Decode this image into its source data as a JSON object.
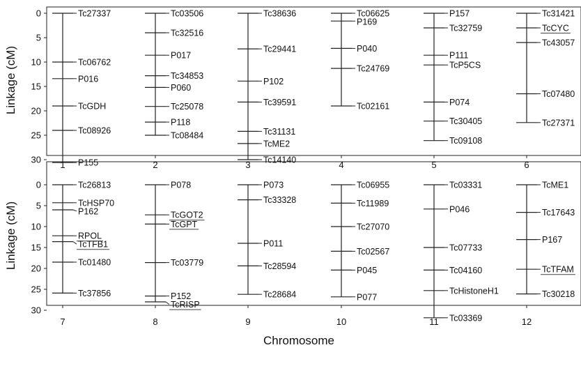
{
  "chart_data": {
    "type": "linkage-map",
    "xlabel": "Chromosome",
    "ylabel": "Linkage (cM)",
    "yticks": [
      0,
      5,
      10,
      15,
      20,
      25,
      30
    ],
    "panels": [
      {
        "ylim": [
          0,
          32
        ],
        "chromosomes": [
          {
            "name": "1",
            "markers": [
              {
                "name": "Tc27337",
                "cM": 0,
                "underlined": false
              },
              {
                "name": "Tc06762",
                "cM": 10,
                "underlined": false
              },
              {
                "name": "P016",
                "cM": 13.4,
                "underlined": false
              },
              {
                "name": "TcGDH",
                "cM": 19,
                "underlined": false
              },
              {
                "name": "Tc08926",
                "cM": 24,
                "underlined": false
              },
              {
                "name": "P155",
                "cM": 30.6,
                "underlined": false
              }
            ]
          },
          {
            "name": "2",
            "markers": [
              {
                "name": "Tc03506",
                "cM": 0,
                "underlined": false
              },
              {
                "name": "Tc32516",
                "cM": 4,
                "underlined": false
              },
              {
                "name": "P017",
                "cM": 8.6,
                "underlined": false
              },
              {
                "name": "Tc34853",
                "cM": 12.8,
                "underlined": false
              },
              {
                "name": "P060",
                "cM": 15.2,
                "underlined": false
              },
              {
                "name": "Tc25078",
                "cM": 19.1,
                "underlined": false
              },
              {
                "name": "P118",
                "cM": 22.3,
                "underlined": false
              },
              {
                "name": "Tc08484",
                "cM": 25,
                "underlined": false
              }
            ]
          },
          {
            "name": "3",
            "markers": [
              {
                "name": "Tc38636",
                "cM": 0,
                "underlined": false
              },
              {
                "name": "Tc29441",
                "cM": 7.3,
                "underlined": false
              },
              {
                "name": "P102",
                "cM": 13.9,
                "underlined": false
              },
              {
                "name": "Tc39591",
                "cM": 18.2,
                "underlined": false
              },
              {
                "name": "Tc31131",
                "cM": 24.2,
                "underlined": false
              },
              {
                "name": "TcME2",
                "cM": 26.7,
                "underlined": false
              },
              {
                "name": "Tc14140",
                "cM": 30,
                "underlined": false
              }
            ]
          },
          {
            "name": "4",
            "markers": [
              {
                "name": "Tc06625",
                "cM": 0,
                "underlined": false
              },
              {
                "name": "P169",
                "cM": 1.6,
                "underlined": false
              },
              {
                "name": "P040",
                "cM": 7.2,
                "underlined": false
              },
              {
                "name": "Tc24769",
                "cM": 11.3,
                "underlined": false
              },
              {
                "name": "Tc02161",
                "cM": 19,
                "underlined": false
              }
            ]
          },
          {
            "name": "5",
            "markers": [
              {
                "name": "P157",
                "cM": 0,
                "underlined": false
              },
              {
                "name": "Tc32759",
                "cM": 3,
                "underlined": false
              },
              {
                "name": "P111",
                "cM": 8.6,
                "underlined": false
              },
              {
                "name": "TcP5CS",
                "cM": 10.6,
                "underlined": false
              },
              {
                "name": "P074",
                "cM": 18.2,
                "underlined": false
              },
              {
                "name": "Tc30405",
                "cM": 22.1,
                "underlined": false
              },
              {
                "name": "Tc09108",
                "cM": 26.1,
                "underlined": false
              }
            ]
          },
          {
            "name": "6",
            "markers": [
              {
                "name": "Tc31421",
                "cM": 0,
                "underlined": false
              },
              {
                "name": "TcCYC",
                "cM": 3,
                "underlined": true
              },
              {
                "name": "Tc43057",
                "cM": 6,
                "underlined": false
              },
              {
                "name": "Tc07480",
                "cM": 16.5,
                "underlined": false
              },
              {
                "name": "Tc27371",
                "cM": 22.4,
                "underlined": false
              }
            ]
          }
        ]
      },
      {
        "ylim": [
          0,
          33
        ],
        "chromosomes": [
          {
            "name": "7",
            "markers": [
              {
                "name": "Tc26813",
                "cM": 0,
                "underlined": false
              },
              {
                "name": "TcHSP70",
                "cM": 4.3,
                "underlined": false
              },
              {
                "name": "P162",
                "cM": 6,
                "underlined": false
              },
              {
                "name": "RPOL",
                "cM": 12.2,
                "underlined": true
              },
              {
                "name": "TcTFB1",
                "cM": 13.6,
                "underlined": true
              },
              {
                "name": "Tc01480",
                "cM": 18.5,
                "underlined": false
              },
              {
                "name": "Tc37856",
                "cM": 25.9,
                "underlined": false
              }
            ]
          },
          {
            "name": "8",
            "markers": [
              {
                "name": "P078",
                "cM": 0,
                "underlined": false
              },
              {
                "name": "TcGOT2",
                "cM": 7.2,
                "underlined": true
              },
              {
                "name": "TcGPT",
                "cM": 9.4,
                "underlined": true
              },
              {
                "name": "Tc03779",
                "cM": 18.6,
                "underlined": false
              },
              {
                "name": "P152",
                "cM": 26.6,
                "underlined": false
              },
              {
                "name": "TcRISP",
                "cM": 28,
                "underlined": true
              }
            ]
          },
          {
            "name": "9",
            "markers": [
              {
                "name": "P073",
                "cM": 0,
                "underlined": false
              },
              {
                "name": "Tc33328",
                "cM": 3.6,
                "underlined": false
              },
              {
                "name": "P011",
                "cM": 14,
                "underlined": false
              },
              {
                "name": "Tc28594",
                "cM": 19.4,
                "underlined": false
              },
              {
                "name": "Tc28684",
                "cM": 26.2,
                "underlined": false
              }
            ]
          },
          {
            "name": "10",
            "markers": [
              {
                "name": "Tc06955",
                "cM": 0,
                "underlined": false
              },
              {
                "name": "Tc11989",
                "cM": 4.4,
                "underlined": false
              },
              {
                "name": "Tc27070",
                "cM": 10,
                "underlined": false
              },
              {
                "name": "Tc02567",
                "cM": 15.9,
                "underlined": false
              },
              {
                "name": "P045",
                "cM": 20.4,
                "underlined": false
              },
              {
                "name": "P077",
                "cM": 26.8,
                "underlined": false
              }
            ]
          },
          {
            "name": "11",
            "markers": [
              {
                "name": "Tc03331",
                "cM": 0,
                "underlined": false
              },
              {
                "name": "P046",
                "cM": 5.8,
                "underlined": false
              },
              {
                "name": "Tc07733",
                "cM": 15,
                "underlined": false
              },
              {
                "name": "Tc04160",
                "cM": 20.4,
                "underlined": false
              },
              {
                "name": "TcHistoneH1",
                "cM": 25.3,
                "underlined": false
              },
              {
                "name": "Tc03369",
                "cM": 31.8,
                "underlined": false
              }
            ]
          },
          {
            "name": "12",
            "markers": [
              {
                "name": "TcME1",
                "cM": 0,
                "underlined": false
              },
              {
                "name": "Tc17643",
                "cM": 6.6,
                "underlined": false
              },
              {
                "name": "P167",
                "cM": 13.1,
                "underlined": false
              },
              {
                "name": "TcTFAM",
                "cM": 20.2,
                "underlined": true
              },
              {
                "name": "Tc30218",
                "cM": 26.1,
                "underlined": false
              }
            ]
          }
        ]
      }
    ]
  }
}
